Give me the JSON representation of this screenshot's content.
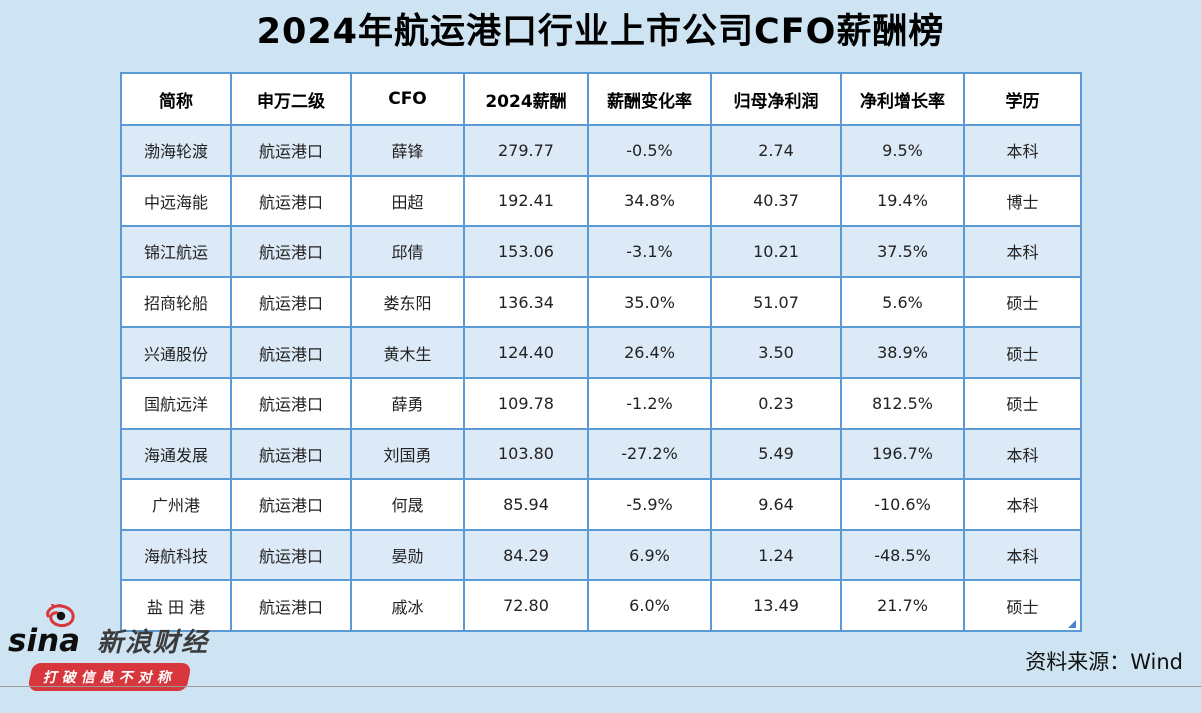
{
  "title_note": "ranking table infographic",
  "chart_data": {
    "type": "table",
    "title": "2024年航运港口行业上市公司CFO薪酬榜",
    "columns": [
      "简称",
      "申万二级",
      "CFO",
      "2024薪酬",
      "薪酬变化率",
      "归母净利润",
      "净利增长率",
      "学历"
    ],
    "rows": [
      [
        "渤海轮渡",
        "航运港口",
        "薛锋",
        "279.77",
        "-0.5%",
        "2.74",
        "9.5%",
        "本科"
      ],
      [
        "中远海能",
        "航运港口",
        "田超",
        "192.41",
        "34.8%",
        "40.37",
        "19.4%",
        "博士"
      ],
      [
        "锦江航运",
        "航运港口",
        "邱倩",
        "153.06",
        "-3.1%",
        "10.21",
        "37.5%",
        "本科"
      ],
      [
        "招商轮船",
        "航运港口",
        "娄东阳",
        "136.34",
        "35.0%",
        "51.07",
        "5.6%",
        "硕士"
      ],
      [
        "兴通股份",
        "航运港口",
        "黄木生",
        "124.40",
        "26.4%",
        "3.50",
        "38.9%",
        "硕士"
      ],
      [
        "国航远洋",
        "航运港口",
        "薛勇",
        "109.78",
        "-1.2%",
        "0.23",
        "812.5%",
        "硕士"
      ],
      [
        "海通发展",
        "航运港口",
        "刘国勇",
        "103.80",
        "-27.2%",
        "5.49",
        "196.7%",
        "本科"
      ],
      [
        "广州港",
        "航运港口",
        "何晟",
        "85.94",
        "-5.9%",
        "9.64",
        "-10.6%",
        "本科"
      ],
      [
        "海航科技",
        "航运港口",
        "晏勋",
        "84.29",
        "6.9%",
        "1.24",
        "-48.5%",
        "本科"
      ],
      [
        "盐 田 港",
        "航运港口",
        "戚冰",
        "72.80",
        "6.0%",
        "13.49",
        "21.7%",
        "硕士"
      ]
    ],
    "layout_hints": {
      "striped_rows": "odd rows light blue, even rows white",
      "grid": "on"
    }
  },
  "colors": {
    "page_background": "#cee4f2",
    "row_stripe": "#dce9f6",
    "row_plain": "#ffffff",
    "grid_border": "#5b9bd5",
    "banner_red": "#d6363c",
    "footer_rule": "#9a9a9a"
  },
  "footer": {
    "source_label": "资料来源：Wind",
    "logo": {
      "brand": "sina",
      "brand_cn": "新浪财经",
      "slogan": "打破信息不对称"
    }
  }
}
